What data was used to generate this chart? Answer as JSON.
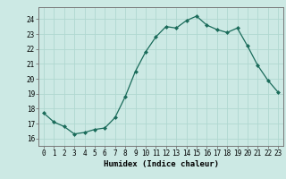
{
  "x": [
    0,
    1,
    2,
    3,
    4,
    5,
    6,
    7,
    8,
    9,
    10,
    11,
    12,
    13,
    14,
    15,
    16,
    17,
    18,
    19,
    20,
    21,
    22,
    23
  ],
  "y": [
    17.7,
    17.1,
    16.8,
    16.3,
    16.4,
    16.6,
    16.7,
    17.4,
    18.8,
    20.5,
    21.8,
    22.8,
    23.5,
    23.4,
    23.9,
    24.2,
    23.6,
    23.3,
    23.1,
    23.4,
    22.2,
    20.9,
    19.9,
    19.1
  ],
  "xlabel": "Humidex (Indice chaleur)",
  "ylim": [
    15.5,
    24.8
  ],
  "xlim": [
    -0.5,
    23.5
  ],
  "yticks": [
    16,
    17,
    18,
    19,
    20,
    21,
    22,
    23,
    24
  ],
  "xticks": [
    0,
    1,
    2,
    3,
    4,
    5,
    6,
    7,
    8,
    9,
    10,
    11,
    12,
    13,
    14,
    15,
    16,
    17,
    18,
    19,
    20,
    21,
    22,
    23
  ],
  "bg_color": "#cce9e4",
  "grid_color": "#b0d8d0",
  "line_color": "#1a6b5a",
  "marker_color": "#1a6b5a",
  "font_family": "monospace",
  "tick_fontsize": 5.5,
  "xlabel_fontsize": 6.5
}
